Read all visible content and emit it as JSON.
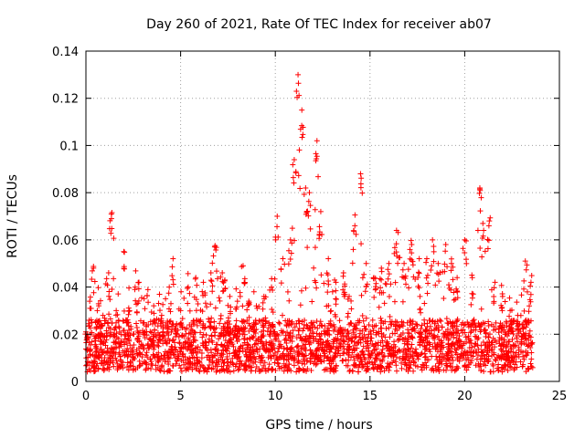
{
  "chart_data": {
    "type": "scatter",
    "title": "Day 260 of 2021, Rate Of TEC Index for receiver ab07",
    "xlabel": "GPS time / hours",
    "ylabel": "ROTI / TECUs",
    "xlim": [
      0,
      25
    ],
    "ylim": [
      0,
      0.14
    ],
    "x_ticks": [
      0,
      5,
      10,
      15,
      20,
      25
    ],
    "y_ticks": [
      0,
      0.02,
      0.04,
      0.06,
      0.08,
      0.1,
      0.12,
      0.14
    ],
    "x_tick_labels": [
      "0",
      "5",
      "10",
      "15",
      "20",
      "25"
    ],
    "y_tick_labels": [
      "0",
      "0.02",
      "0.04",
      "0.06",
      "0.08",
      "0.1",
      "0.12",
      "0.14"
    ],
    "grid": true,
    "marker": "+",
    "marker_color": "#ff0000",
    "x_range_observed": [
      0,
      23.6
    ],
    "series": [
      {
        "name": "ROTI",
        "x": [
          0.0,
          0.2,
          0.4,
          0.6,
          0.9,
          1.2,
          1.35,
          1.6,
          2.0,
          2.3,
          2.6,
          2.8,
          3.2,
          3.6,
          4.0,
          4.4,
          4.6,
          5.0,
          5.4,
          5.8,
          6.2,
          6.6,
          6.8,
          7.2,
          7.6,
          8.0,
          8.3,
          8.6,
          9.0,
          9.4,
          9.8,
          10.1,
          10.4,
          10.8,
          11.0,
          11.2,
          11.4,
          11.6,
          11.8,
          12.2,
          12.4,
          12.8,
          13.2,
          13.6,
          13.9,
          14.2,
          14.5,
          14.8,
          15.2,
          15.6,
          16.0,
          16.4,
          16.8,
          17.2,
          17.6,
          18.0,
          18.3,
          18.6,
          19.0,
          19.3,
          19.6,
          20.0,
          20.4,
          20.8,
          21.0,
          21.3,
          21.6,
          22.0,
          22.4,
          22.8,
          23.2,
          23.5
        ],
        "y": [
          0.021,
          0.034,
          0.048,
          0.03,
          0.028,
          0.046,
          0.069,
          0.03,
          0.055,
          0.03,
          0.04,
          0.042,
          0.024,
          0.02,
          0.028,
          0.04,
          0.052,
          0.03,
          0.04,
          0.044,
          0.042,
          0.046,
          0.057,
          0.046,
          0.036,
          0.034,
          0.049,
          0.034,
          0.032,
          0.036,
          0.04,
          0.07,
          0.052,
          0.06,
          0.094,
          0.13,
          0.115,
          0.082,
          0.08,
          0.102,
          0.072,
          0.052,
          0.042,
          0.046,
          0.036,
          0.066,
          0.088,
          0.05,
          0.044,
          0.048,
          0.05,
          0.064,
          0.05,
          0.058,
          0.052,
          0.052,
          0.06,
          0.05,
          0.058,
          0.05,
          0.044,
          0.06,
          0.044,
          0.082,
          0.064,
          0.068,
          0.042,
          0.036,
          0.03,
          0.028,
          0.051,
          0.042
        ]
      }
    ]
  }
}
